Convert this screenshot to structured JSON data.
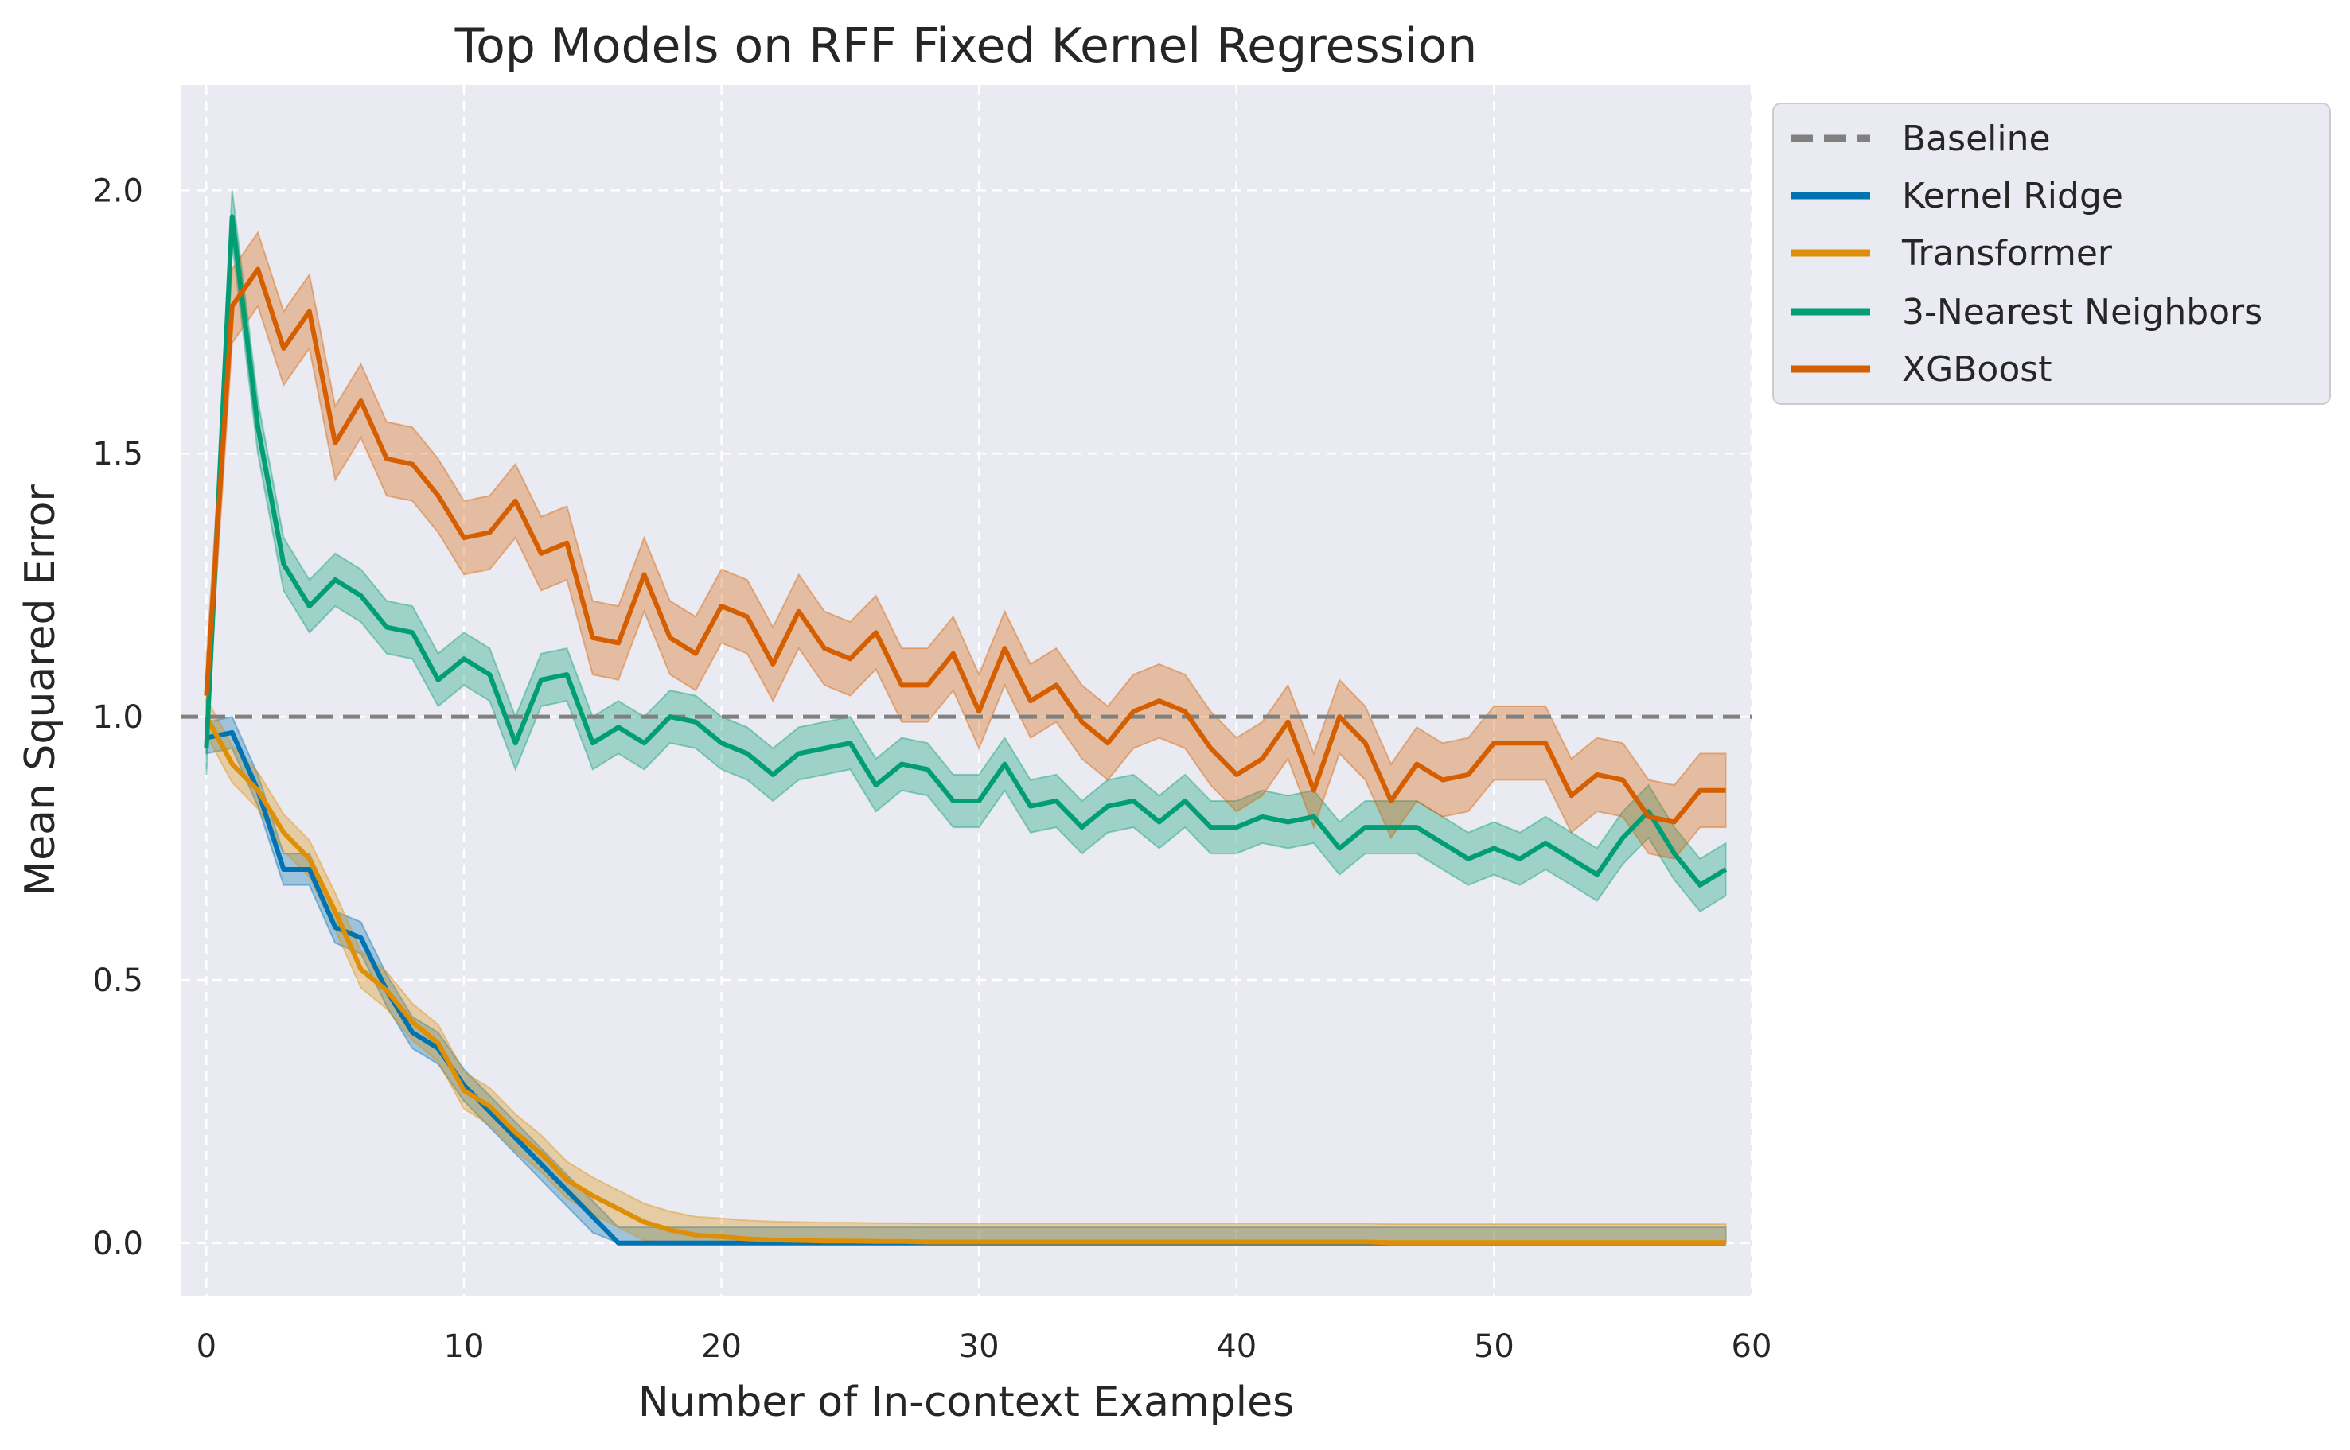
{
  "chart_data": {
    "type": "line",
    "title": "Top Models on RFF Fixed Kernel Regression",
    "xlabel": "Number of In-context Examples",
    "ylabel": "Mean Squared Error",
    "xlim": [
      -1,
      60
    ],
    "ylim": [
      -0.1,
      2.2
    ],
    "xticks": [
      0,
      10,
      20,
      30,
      40,
      50,
      60
    ],
    "yticks": [
      0.0,
      0.5,
      1.0,
      1.5,
      2.0
    ],
    "ytick_labels": [
      "0.0",
      "0.5",
      "1.0",
      "1.5",
      "2.0"
    ],
    "grid": true,
    "legend_position": "outside-top-right",
    "background_color": "#eaeaf2",
    "baseline": {
      "name": "Baseline",
      "value": 1.0,
      "color": "#808080",
      "style": "dashed"
    },
    "series": [
      {
        "name": "Kernel Ridge",
        "color": "#0173b2",
        "band": 0.03,
        "values": [
          0.96,
          0.97,
          0.86,
          0.71,
          0.71,
          0.6,
          0.58,
          0.48,
          0.4,
          0.37,
          0.3,
          0.25,
          0.2,
          0.15,
          0.1,
          0.05,
          0.0,
          0.0,
          0.0,
          0.0,
          0.0,
          0.0,
          0.0,
          0.0,
          0.0,
          0.0,
          0.0,
          0.0,
          0.0,
          0.0,
          0.0,
          0.0,
          0.0,
          0.0,
          0.0,
          0.0,
          0.0,
          0.0,
          0.0,
          0.0,
          0.0,
          0.0,
          0.0,
          0.0,
          0.0,
          0.0,
          0.0,
          0.0,
          0.0,
          0.0,
          0.0,
          0.0,
          0.0,
          0.0,
          0.0,
          0.0,
          0.0,
          0.0,
          0.0,
          0.0
        ]
      },
      {
        "name": "Transformer",
        "color": "#de8f05",
        "band": 0.035,
        "values": [
          1.0,
          0.91,
          0.86,
          0.78,
          0.73,
          0.63,
          0.52,
          0.48,
          0.42,
          0.38,
          0.29,
          0.26,
          0.21,
          0.17,
          0.12,
          0.09,
          0.065,
          0.04,
          0.025,
          0.015,
          0.012,
          0.008,
          0.006,
          0.005,
          0.004,
          0.004,
          0.003,
          0.003,
          0.002,
          0.002,
          0.002,
          0.002,
          0.002,
          0.002,
          0.002,
          0.002,
          0.002,
          0.002,
          0.002,
          0.002,
          0.002,
          0.002,
          0.002,
          0.002,
          0.002,
          0.002,
          0.001,
          0.001,
          0.001,
          0.001,
          0.001,
          0.001,
          0.001,
          0.001,
          0.001,
          0.001,
          0.001,
          0.001,
          0.001,
          0.001
        ]
      },
      {
        "name": "3-Nearest Neighbors",
        "color": "#029e73",
        "band": 0.05,
        "values": [
          0.94,
          1.95,
          1.55,
          1.29,
          1.21,
          1.26,
          1.23,
          1.17,
          1.16,
          1.07,
          1.11,
          1.08,
          0.95,
          1.07,
          1.08,
          0.95,
          0.98,
          0.95,
          1.0,
          0.99,
          0.95,
          0.93,
          0.89,
          0.93,
          0.94,
          0.95,
          0.87,
          0.91,
          0.9,
          0.84,
          0.84,
          0.91,
          0.83,
          0.84,
          0.79,
          0.83,
          0.84,
          0.8,
          0.84,
          0.79,
          0.79,
          0.81,
          0.8,
          0.81,
          0.75,
          0.79,
          0.79,
          0.79,
          0.76,
          0.73,
          0.75,
          0.73,
          0.76,
          0.73,
          0.7,
          0.77,
          0.82,
          0.74,
          0.68,
          0.71
        ]
      },
      {
        "name": "XGBoost",
        "color": "#d55e00",
        "band": 0.07,
        "values": [
          1.04,
          1.78,
          1.85,
          1.7,
          1.77,
          1.52,
          1.6,
          1.49,
          1.48,
          1.42,
          1.34,
          1.35,
          1.41,
          1.31,
          1.33,
          1.15,
          1.14,
          1.27,
          1.15,
          1.12,
          1.21,
          1.19,
          1.1,
          1.2,
          1.13,
          1.11,
          1.16,
          1.06,
          1.06,
          1.12,
          1.01,
          1.13,
          1.03,
          1.06,
          0.99,
          0.95,
          1.01,
          1.03,
          1.01,
          0.94,
          0.89,
          0.92,
          0.99,
          0.86,
          1.0,
          0.95,
          0.84,
          0.91,
          0.88,
          0.89,
          0.95,
          0.95,
          0.95,
          0.85,
          0.89,
          0.88,
          0.81,
          0.8,
          0.86,
          0.86
        ]
      }
    ]
  }
}
